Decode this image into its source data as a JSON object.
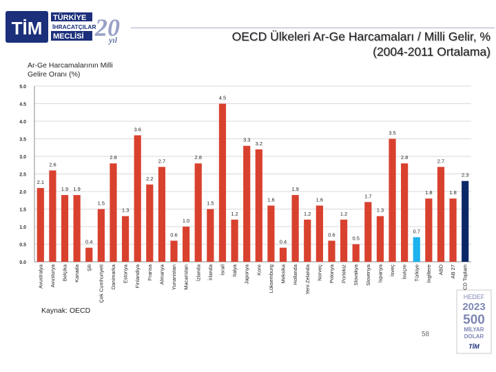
{
  "header": {
    "logo_text_main": "TİM",
    "logo_text_line1": "TÜRKİYE",
    "logo_text_line2": "İHRACATÇILAR",
    "logo_text_line3": "MECLİSİ",
    "logo_anniv": "20",
    "logo_anniv_suffix": "yıl",
    "title_line1": "OECD Ülkeleri Ar-Ge Harcamaları / Milli Gelir, %",
    "title_line2": "(2004-2011 Ortalama)"
  },
  "footer": {
    "source": "Kaynak: OECD",
    "page_number": "58",
    "badge_line1": "HEDEF",
    "badge_line2": "2023",
    "badge_line3": "500",
    "badge_line4": "MİLYAR",
    "badge_line5": "DOLAR",
    "badge_line6": "TİM"
  },
  "colors": {
    "bar_default": "#d9412f",
    "bar_turkey": "#1db2ee",
    "bar_oecd": "#0b2768",
    "grid": "#d9d9d9",
    "axis": "#888888"
  },
  "chart_data": {
    "type": "bar",
    "ylabel": "Ar-Ge Harcamalarının Milli Gelire Oranı (%)",
    "xlabel": "",
    "ylim": [
      0,
      5
    ],
    "yticks": [
      "0.0",
      "0.5",
      "1.0",
      "1.5",
      "2.0",
      "2.5",
      "3.0",
      "3.5",
      "4.0",
      "4.5",
      "5.0"
    ],
    "grid": true,
    "categories": [
      "Avustralya",
      "Avusturya",
      "Belçika",
      "Kanada",
      "Şili",
      "Çek Cumhuriyeti",
      "Danimarka",
      "Estonya",
      "Finlandiya",
      "Fransa",
      "Almanya",
      "Yunanistan",
      "Macaristan",
      "İzlanda",
      "İrlanda",
      "İsrail",
      "İtalya",
      "Japonya",
      "Kore",
      "Lüksemburg",
      "Meksika",
      "Hollanda",
      "Yeni Zelanda",
      "Norveç",
      "Polonya",
      "Portekiz",
      "Slovakya",
      "Slovenya",
      "İspanya",
      "İsveç",
      "İsviçre",
      "Türkiye",
      "İngiltere",
      "ABD",
      "AB 27",
      "OECD Toplam"
    ],
    "values": [
      2.1,
      2.6,
      1.9,
      1.9,
      0.4,
      1.5,
      2.8,
      1.3,
      3.6,
      2.2,
      2.7,
      0.6,
      1.0,
      2.8,
      1.5,
      4.5,
      1.2,
      3.3,
      3.2,
      1.6,
      0.4,
      1.9,
      1.2,
      1.6,
      0.6,
      1.2,
      0.5,
      1.7,
      1.3,
      3.5,
      2.8,
      0.7,
      1.8,
      2.7,
      1.8,
      2.3
    ],
    "value_labels": [
      "2.1",
      "2.6",
      "1.9",
      "1.9",
      "0.4",
      "1.5",
      "2.8",
      "1.3",
      "3.6",
      "2.2",
      "2.7",
      "0.6",
      "1.0",
      "2.8",
      "1.5",
      "4.5",
      "1.2",
      "3.3",
      "3.2",
      "1.6",
      "0.4",
      "1.9",
      "1.2",
      "1.6",
      "0.6",
      "1.2",
      "0.5",
      "1.7",
      "1.3",
      "3.5",
      "2.8",
      "0.7",
      "1.8",
      "2.7",
      "1.8",
      "2.3"
    ],
    "highlights": {
      "Türkiye": "turkey",
      "OECD Toplam": "oecd"
    }
  }
}
